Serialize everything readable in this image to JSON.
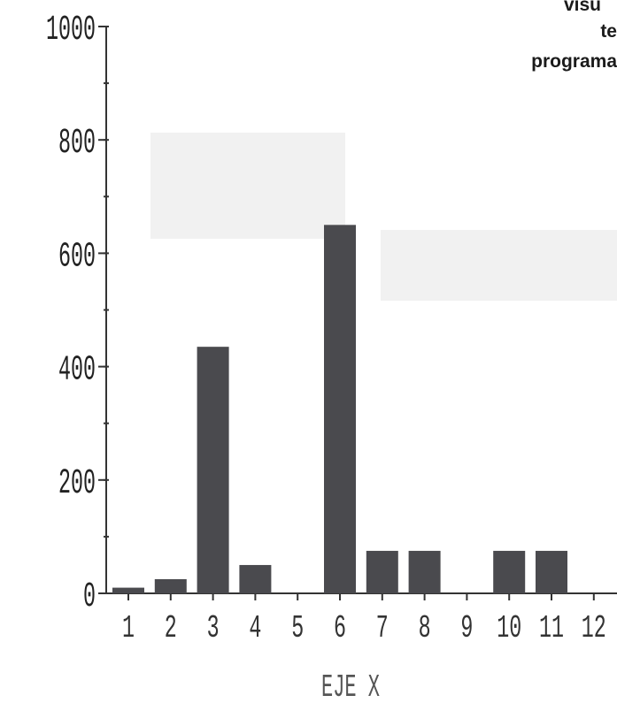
{
  "corner_text": [
    "visu",
    "te",
    "programa"
  ],
  "chart_data": {
    "type": "bar",
    "title": "",
    "xlabel": "EJE X",
    "ylabel": "",
    "categories": [
      "1",
      "2",
      "3",
      "4",
      "5",
      "6",
      "7",
      "8",
      "9",
      "10",
      "11",
      "12"
    ],
    "values": [
      10,
      25,
      435,
      50,
      0,
      650,
      75,
      75,
      0,
      75,
      75,
      0
    ],
    "ylim": [
      0,
      1000
    ],
    "yticks": [
      0,
      200,
      400,
      600,
      800,
      1000
    ],
    "grid": false,
    "bar_color": "#4a4a4e",
    "axis_color": "#333333"
  }
}
